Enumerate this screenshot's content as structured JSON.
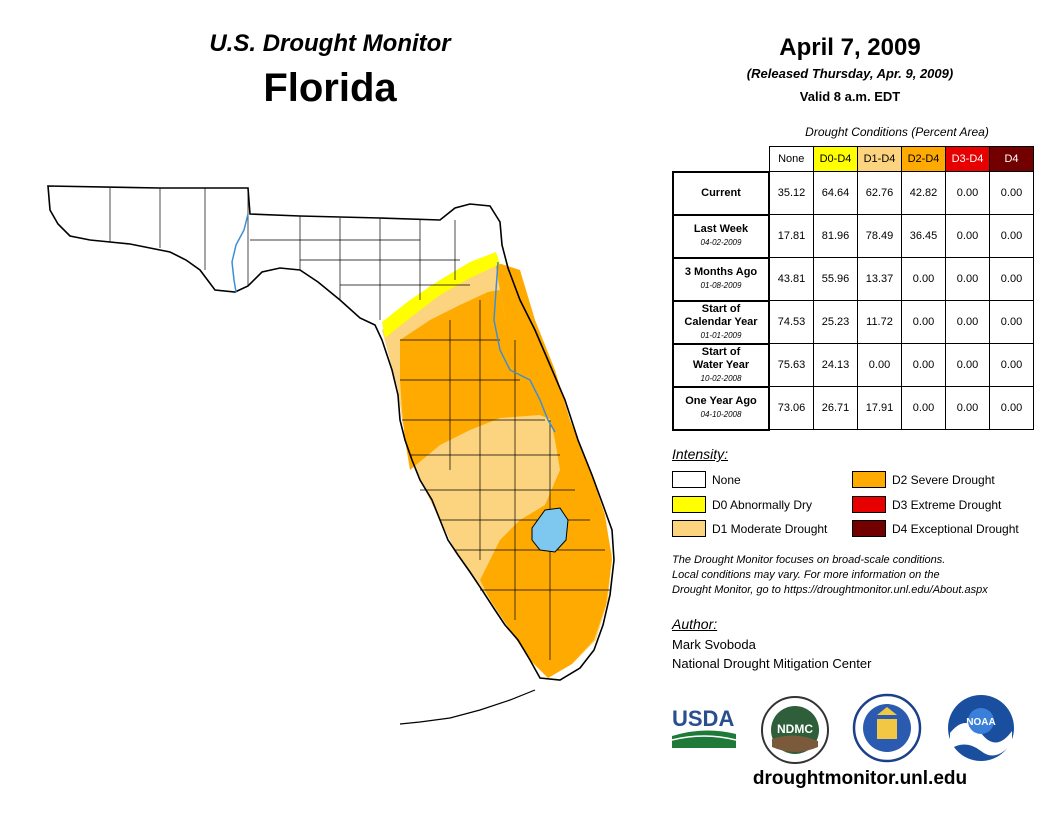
{
  "header": {
    "subtitle": "U.S. Drought Monitor",
    "region": "Florida",
    "date": "April 7, 2009",
    "released": "(Released Thursday, Apr. 9, 2009)",
    "valid": "Valid 8 a.m. EDT"
  },
  "table": {
    "caption": "Drought Conditions (Percent Area)",
    "columns": [
      {
        "label": "None",
        "color": "#ffffff",
        "text_color": "#000000"
      },
      {
        "label": "D0-D4",
        "color": "#ffff00",
        "text_color": "#000000"
      },
      {
        "label": "D1-D4",
        "color": "#fcd37f",
        "text_color": "#000000"
      },
      {
        "label": "D2-D4",
        "color": "#ffaa00",
        "text_color": "#000000"
      },
      {
        "label": "D3-D4",
        "color": "#e60000",
        "text_color": "#ffffff"
      },
      {
        "label": "D4",
        "color": "#730000",
        "text_color": "#ffffff"
      }
    ],
    "rows": [
      {
        "label": "Current",
        "label2": "",
        "date": "",
        "values": [
          "35.12",
          "64.64",
          "62.76",
          "42.82",
          "0.00",
          "0.00"
        ]
      },
      {
        "label": "Last Week",
        "label2": "",
        "date": "04-02-2009",
        "values": [
          "17.81",
          "81.96",
          "78.49",
          "36.45",
          "0.00",
          "0.00"
        ]
      },
      {
        "label": "3 Months Ago",
        "label2": "",
        "date": "01-08-2009",
        "values": [
          "43.81",
          "55.96",
          "13.37",
          "0.00",
          "0.00",
          "0.00"
        ]
      },
      {
        "label": "Start of",
        "label2": "Calendar Year",
        "date": "01-01-2009",
        "values": [
          "74.53",
          "25.23",
          "11.72",
          "0.00",
          "0.00",
          "0.00"
        ]
      },
      {
        "label": "Start of",
        "label2": "Water Year",
        "date": "10-02-2008",
        "values": [
          "75.63",
          "24.13",
          "0.00",
          "0.00",
          "0.00",
          "0.00"
        ]
      },
      {
        "label": "One Year Ago",
        "label2": "",
        "date": "04-10-2008",
        "values": [
          "73.06",
          "26.71",
          "17.91",
          "0.00",
          "0.00",
          "0.00"
        ]
      }
    ]
  },
  "legend": {
    "title": "Intensity:",
    "items": [
      {
        "label": "None",
        "color": "#ffffff"
      },
      {
        "label": "D0 Abnormally Dry",
        "color": "#ffff00"
      },
      {
        "label": "D1 Moderate Drought",
        "color": "#fcd37f"
      },
      {
        "label": "D2 Severe Drought",
        "color": "#ffaa00"
      },
      {
        "label": "D3 Extreme Drought",
        "color": "#e60000"
      },
      {
        "label": "D4 Exceptional Drought",
        "color": "#730000"
      }
    ]
  },
  "note": {
    "line1": "The Drought Monitor focuses on broad-scale conditions.",
    "line2": "Local conditions may vary. For more information on the",
    "line3": "Drought Monitor, go to https://droughtmonitor.unl.edu/About.aspx"
  },
  "author": {
    "title": "Author:",
    "name": "Mark Svoboda",
    "org": "National Drought Mitigation Center"
  },
  "logos": {
    "usda": "USDA",
    "ndmc": "NDMC",
    "noaa": "NOAA"
  },
  "website": "droughtmonitor.unl.edu",
  "colors": {
    "water": "#7ec8f0",
    "river": "#3b8fd6"
  }
}
